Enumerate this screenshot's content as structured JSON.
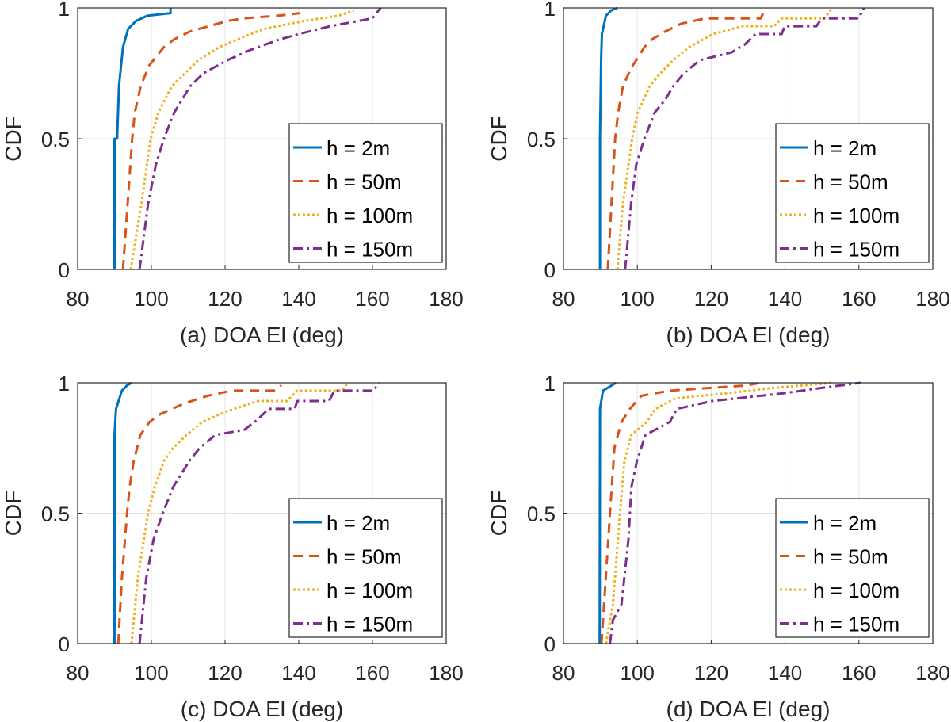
{
  "chart_data": [
    {
      "type": "line",
      "title": "(a) DOA El (deg)",
      "xlabel": "(a) DOA El (deg)",
      "ylabel": "CDF",
      "xlim": [
        80,
        180
      ],
      "ylim": [
        0,
        1
      ],
      "xticks": [
        "80",
        "100",
        "120",
        "140",
        "160",
        "180"
      ],
      "yticks": [
        "0",
        "0.5",
        "1"
      ],
      "grid": true,
      "legend_position": "bottom-right",
      "series": [
        {
          "name": "h = 2m",
          "color": "#0072BD",
          "style": "solid",
          "x": [
            90,
            90,
            90.7,
            91.2,
            92.3,
            93.7,
            95.8,
            98.9,
            105.2,
            105.2
          ],
          "y": [
            0,
            0.5,
            0.5,
            0.7,
            0.85,
            0.92,
            0.95,
            0.97,
            0.98,
            1.0
          ]
        },
        {
          "name": "h = 50m",
          "color": "#D95319",
          "style": "dashed",
          "x": [
            92.3,
            94.8,
            95.5,
            97.1,
            99.4,
            103.4,
            106.2,
            110.5,
            120.6,
            124.9,
            134.2,
            140.3
          ],
          "y": [
            0,
            0.5,
            0.6,
            0.7,
            0.78,
            0.85,
            0.88,
            0.91,
            0.95,
            0.96,
            0.97,
            0.98
          ]
        },
        {
          "name": "h = 100m",
          "color": "#EDB120",
          "style": "dotted",
          "x": [
            94.4,
            97.3,
            99.8,
            101.9,
            105.5,
            109.1,
            112.7,
            118.4,
            123.4,
            130.6,
            141.4,
            150.7,
            155
          ],
          "y": [
            0,
            0.25,
            0.5,
            0.6,
            0.7,
            0.75,
            0.8,
            0.85,
            0.88,
            0.92,
            0.95,
            0.97,
            0.99
          ]
        },
        {
          "name": "h = 150m",
          "color": "#7E2F8E",
          "style": "dashdot",
          "x": [
            96.8,
            99.1,
            101.2,
            103.4,
            106.2,
            110.5,
            114.1,
            120.6,
            127,
            134.9,
            140,
            148.5,
            160,
            162.2
          ],
          "y": [
            0,
            0.25,
            0.4,
            0.5,
            0.6,
            0.7,
            0.75,
            0.8,
            0.84,
            0.88,
            0.9,
            0.93,
            0.96,
            1.0
          ]
        }
      ]
    },
    {
      "type": "line",
      "title": "(b) DOA El (deg)",
      "xlabel": "(b) DOA El (deg)",
      "ylabel": "CDF",
      "xlim": [
        80,
        180
      ],
      "ylim": [
        0,
        1
      ],
      "xticks": [
        "80",
        "100",
        "120",
        "140",
        "160",
        "180"
      ],
      "yticks": [
        "0",
        "0.5",
        "1"
      ],
      "grid": true,
      "legend_position": "bottom-right",
      "series": [
        {
          "name": "h = 2m",
          "color": "#0072BD",
          "style": "solid",
          "x": [
            89.9,
            89.9,
            90.2,
            90.4,
            91.5,
            92.9,
            94.6
          ],
          "y": [
            0,
            0.5,
            0.8,
            0.9,
            0.97,
            0.99,
            1.0
          ]
        },
        {
          "name": "h = 50m",
          "color": "#D95319",
          "style": "dashed",
          "x": [
            92,
            93,
            94,
            94.8,
            96.1,
            98.3,
            99.7,
            101.9,
            104,
            107.6,
            111.9,
            118.4,
            133.4,
            134.8
          ],
          "y": [
            0,
            0.25,
            0.5,
            0.6,
            0.7,
            0.77,
            0.8,
            0.85,
            0.88,
            0.91,
            0.94,
            0.96,
            0.96,
            1.0
          ]
        },
        {
          "name": "h = 100m",
          "color": "#EDB120",
          "style": "dotted",
          "x": [
            94.6,
            96.1,
            98.6,
            100.1,
            103.3,
            106.2,
            109.7,
            114,
            120.5,
            128.4,
            137,
            139.1,
            150.6,
            152.8
          ],
          "y": [
            0,
            0.25,
            0.5,
            0.6,
            0.7,
            0.75,
            0.8,
            0.85,
            0.9,
            0.93,
            0.93,
            0.96,
            0.96,
            1.0
          ]
        },
        {
          "name": "h = 150m",
          "color": "#7E2F8E",
          "style": "dashdot",
          "x": [
            96.7,
            98.3,
            99.7,
            101.9,
            104.7,
            107.6,
            109.7,
            112.6,
            116.9,
            125.5,
            129.1,
            132,
            139.1,
            139.9,
            148.5,
            149.9,
            159.9,
            161.4
          ],
          "y": [
            0,
            0.25,
            0.4,
            0.5,
            0.6,
            0.65,
            0.7,
            0.75,
            0.8,
            0.83,
            0.86,
            0.9,
            0.9,
            0.93,
            0.93,
            0.96,
            0.96,
            1.0
          ]
        }
      ]
    },
    {
      "type": "line",
      "title": "(c) DOA El (deg)",
      "xlabel": "(c) DOA El (deg)",
      "ylabel": "CDF",
      "xlim": [
        80,
        180
      ],
      "ylim": [
        0,
        1
      ],
      "xticks": [
        "80",
        "100",
        "120",
        "140",
        "160",
        "180"
      ],
      "yticks": [
        "0",
        "0.5",
        "1"
      ],
      "grid": true,
      "legend_position": "bottom-right",
      "series": [
        {
          "name": "h = 2m",
          "color": "#0072BD",
          "style": "solid",
          "x": [
            90,
            90,
            90,
            90.4,
            92,
            93.4,
            94.6
          ],
          "y": [
            0,
            0.5,
            0.8,
            0.9,
            0.97,
            0.99,
            1.0
          ]
        },
        {
          "name": "h = 50m",
          "color": "#D95319",
          "style": "dashed",
          "x": [
            91,
            92,
            93.4,
            94.1,
            95.2,
            97,
            99.5,
            102.4,
            108.8,
            115.3,
            121.7,
            133.2,
            135.3
          ],
          "y": [
            0,
            0.25,
            0.5,
            0.6,
            0.7,
            0.8,
            0.85,
            0.88,
            0.92,
            0.95,
            0.97,
            0.97,
            0.99
          ]
        },
        {
          "name": "h = 100m",
          "color": "#EDB120",
          "style": "dotted",
          "x": [
            94.6,
            96.3,
            99.1,
            100.9,
            103.4,
            105.9,
            109.5,
            113.8,
            120.3,
            128.9,
            136.8,
            139.6,
            151.8,
            153.3
          ],
          "y": [
            0,
            0.25,
            0.5,
            0.6,
            0.7,
            0.75,
            0.8,
            0.85,
            0.89,
            0.93,
            0.93,
            0.97,
            0.97,
            1.0
          ]
        },
        {
          "name": "h = 150m",
          "color": "#7E2F8E",
          "style": "dashdot",
          "x": [
            96.8,
            98.6,
            100.6,
            103.1,
            105.9,
            108.1,
            110.3,
            113.1,
            117.4,
            125.3,
            128.9,
            131.8,
            138.9,
            139.6,
            148.2,
            149.7,
            160.4,
            161.5
          ],
          "y": [
            0,
            0.25,
            0.4,
            0.5,
            0.6,
            0.65,
            0.7,
            0.75,
            0.8,
            0.82,
            0.86,
            0.9,
            0.9,
            0.93,
            0.93,
            0.97,
            0.97,
            1.0
          ]
        }
      ]
    },
    {
      "type": "line",
      "title": "(d) DOA El (deg)",
      "xlabel": "(d) DOA El (deg)",
      "ylabel": "CDF",
      "xlim": [
        80,
        180
      ],
      "ylim": [
        0,
        1
      ],
      "xticks": [
        "80",
        "100",
        "120",
        "140",
        "160",
        "180"
      ],
      "yticks": [
        "0",
        "0.5",
        "1"
      ],
      "grid": true,
      "legend_position": "bottom-right",
      "series": [
        {
          "name": "h = 2m",
          "color": "#0072BD",
          "style": "solid",
          "x": [
            89.8,
            89.9,
            90.7,
            94.2
          ],
          "y": [
            0,
            0.9,
            0.97,
            1.0
          ]
        },
        {
          "name": "h = 50m",
          "color": "#D95319",
          "style": "dashed",
          "x": [
            90.3,
            92.6,
            93.8,
            95.7,
            98,
            101.1,
            108.8,
            129.6,
            133.4
          ],
          "y": [
            0,
            0.5,
            0.75,
            0.85,
            0.9,
            0.95,
            0.97,
            0.99,
            1.0
          ]
        },
        {
          "name": "h = 100m",
          "color": "#EDB120",
          "style": "dotted",
          "x": [
            91.5,
            93.4,
            95.3,
            96.5,
            98.4,
            102.6,
            104.9,
            110.3,
            124.2,
            136.5,
            152.7
          ],
          "y": [
            0,
            0.15,
            0.5,
            0.7,
            0.8,
            0.85,
            0.9,
            0.94,
            0.96,
            0.98,
            1.0
          ]
        },
        {
          "name": "h = 150m",
          "color": "#7E2F8E",
          "style": "dashdot",
          "x": [
            92.6,
            93.4,
            95.7,
            97.6,
            98.4,
            99.9,
            102.2,
            108.8,
            110.7,
            120.3,
            139.6,
            149.6,
            160.4
          ],
          "y": [
            0,
            0.09,
            0.15,
            0.4,
            0.6,
            0.7,
            0.8,
            0.85,
            0.9,
            0.93,
            0.96,
            0.98,
            1.0
          ]
        }
      ]
    }
  ]
}
